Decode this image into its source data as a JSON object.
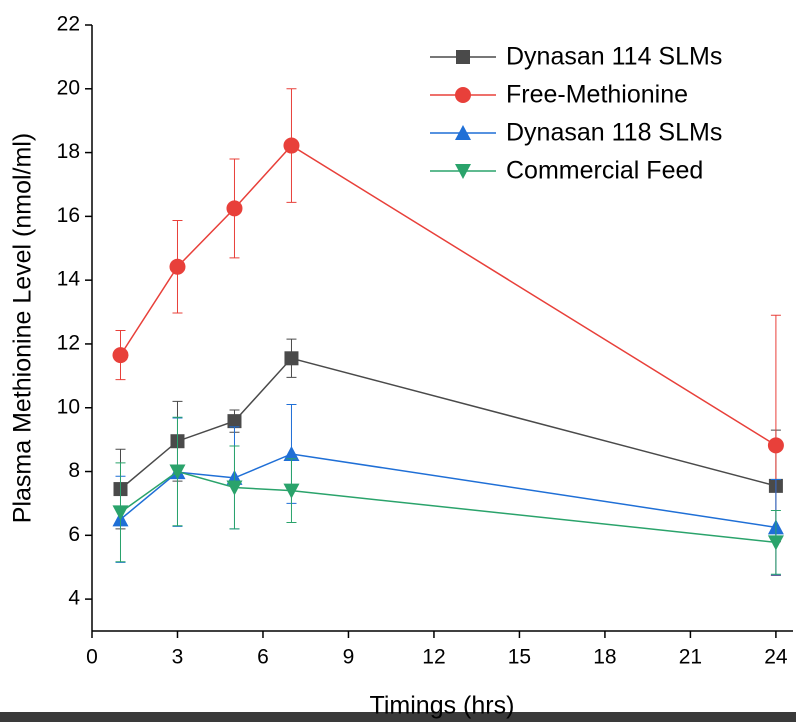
{
  "chart_data": {
    "type": "line",
    "x_label": "Timings (hrs)",
    "y_label": "Plasma Methionine Level (nmol/ml)",
    "xlim": [
      0,
      24.6
    ],
    "xticks": [
      0,
      3,
      6,
      9,
      12,
      15,
      18,
      21,
      24
    ],
    "ylim": [
      3,
      22
    ],
    "yticks": [
      4,
      6,
      8,
      10,
      12,
      14,
      16,
      18,
      20,
      22
    ],
    "grid": false,
    "legend": "top-right",
    "series": [
      {
        "name": "Dynasan 114 SLMs",
        "color": "#4a4a4a",
        "marker": "square",
        "x": [
          1,
          3,
          5,
          7,
          24
        ],
        "values": [
          7.45,
          8.95,
          9.58,
          11.55,
          7.55
        ],
        "errors": [
          1.25,
          1.25,
          0.35,
          0.6,
          1.75
        ]
      },
      {
        "name": "Free-Methionine",
        "color": "#e8403a",
        "marker": "circle",
        "x": [
          1,
          3,
          5,
          7,
          24
        ],
        "values": [
          11.65,
          14.42,
          16.25,
          18.22,
          8.82
        ],
        "errors": [
          0.77,
          1.45,
          1.55,
          1.78,
          4.08
        ]
      },
      {
        "name": "Dynasan 118 SLMs",
        "color": "#1f6fd6",
        "marker": "triangle-up",
        "x": [
          1,
          3,
          5,
          7,
          24
        ],
        "values": [
          6.5,
          7.98,
          7.8,
          8.55,
          6.25
        ],
        "errors": [
          1.35,
          1.7,
          1.6,
          1.55,
          1.5
        ]
      },
      {
        "name": "Commercial Feed",
        "color": "#2aa36b",
        "marker": "triangle-down",
        "x": [
          1,
          3,
          5,
          7,
          24
        ],
        "values": [
          6.72,
          8.0,
          7.5,
          7.4,
          5.78
        ],
        "errors": [
          1.55,
          1.7,
          1.3,
          1.0,
          1.0
        ]
      }
    ]
  }
}
